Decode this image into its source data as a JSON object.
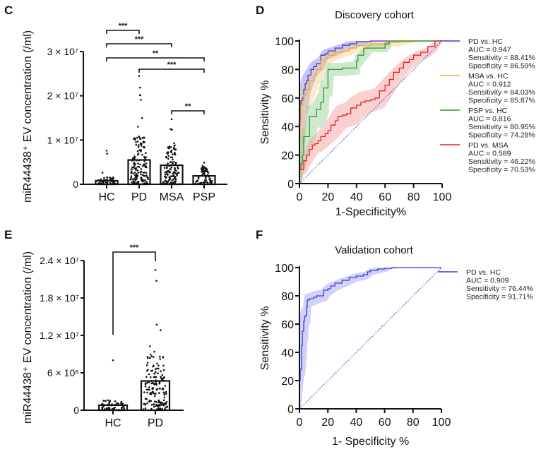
{
  "chart_data": [
    {
      "panel": "C",
      "type": "bar",
      "title": "",
      "xlabel": "",
      "ylabel": "miR44438⁺ EV concentration (/ml)",
      "categories": [
        "HC",
        "PD",
        "MSA",
        "PSP"
      ],
      "values": [
        800000,
        5500000,
        4300000,
        1900000
      ],
      "ylim": [
        0,
        30000000
      ],
      "yticks": [
        {
          "value": 0,
          "label": "0"
        },
        {
          "value": 10000000,
          "label": "1 × 10⁷"
        },
        {
          "value": 20000000,
          "label": "2 × 10⁷"
        },
        {
          "value": 30000000,
          "label": "3 × 10⁷"
        }
      ],
      "points_max": [
        7600000,
        24500000,
        14700000,
        4900000
      ],
      "significance": [
        {
          "from": "HC",
          "to": "PD",
          "label": "***"
        },
        {
          "from": "HC",
          "to": "MSA",
          "label": "***"
        },
        {
          "from": "HC",
          "to": "PSP",
          "label": "**"
        },
        {
          "from": "PD",
          "to": "PSP",
          "label": "***"
        },
        {
          "from": "MSA",
          "to": "PSP",
          "label": "**"
        }
      ]
    },
    {
      "panel": "D",
      "type": "line",
      "title": "Discovery cohort",
      "xlabel": "1-Specificity%",
      "ylabel": "Sensitivity %",
      "xlim": [
        0,
        100
      ],
      "ylim": [
        0,
        100
      ],
      "xticks": [
        "0",
        "20",
        "40",
        "60",
        "80",
        "100"
      ],
      "yticks": [
        "0",
        "20",
        "40",
        "60",
        "80",
        "100"
      ],
      "legend_position": "right",
      "series": [
        {
          "name": "PD vs. HC",
          "color": "#3a3ae0",
          "band": "#7f7ff0",
          "auc": "AUC = 0.947",
          "sens": "Sensitivity = 88.41%",
          "spec": "Specificity = 86.59%",
          "x": [
            0,
            0.5,
            1,
            2,
            3,
            4,
            5,
            6,
            8,
            10,
            12,
            15,
            18,
            20,
            25,
            30,
            35,
            40,
            50,
            60,
            70,
            100
          ],
          "y": [
            0,
            40,
            55,
            58,
            60,
            66,
            70,
            72,
            76,
            80,
            82,
            84,
            90,
            91,
            93,
            95,
            97,
            98,
            99.5,
            100,
            100,
            100
          ]
        },
        {
          "name": "MSA vs. HC",
          "color": "#f2a531",
          "band": "#f7cf8b",
          "auc": "AUC = 0.912",
          "sens": "Sensitivity = 84.03%",
          "spec": "Specificity = 85.87%",
          "x": [
            0,
            0.5,
            1,
            2,
            3,
            5,
            7,
            10,
            12,
            15,
            18,
            20,
            25,
            30,
            35,
            40,
            50,
            60,
            70,
            80,
            100
          ],
          "y": [
            0,
            30,
            45,
            55,
            58,
            62,
            66,
            72,
            76,
            80,
            86,
            88,
            90,
            92,
            93,
            95,
            97,
            98,
            99,
            99.5,
            100
          ]
        },
        {
          "name": "PSP vs. HC",
          "color": "#2f9a2f",
          "band": "#8fce8f",
          "auc": "AUC = 0.816",
          "sens": "Sensitivity = 80.95%",
          "spec": "Specificity = 74.28%",
          "x": [
            0,
            1,
            2,
            3,
            5,
            7,
            9,
            12,
            15,
            17,
            18,
            20,
            22,
            25,
            30,
            40,
            41,
            45,
            50,
            52,
            60,
            63,
            64,
            100
          ],
          "y": [
            0,
            10,
            14,
            20,
            33,
            33,
            47,
            47,
            52,
            57,
            67,
            67,
            80,
            80,
            80,
            81,
            86,
            90,
            95,
            95,
            95,
            98,
            100,
            100
          ]
        },
        {
          "name": "PD vs. MSA",
          "color": "#e82020",
          "band": "#f59a9a",
          "auc": "AUC = 0.589",
          "sens": "Sensitivity = 46.22%",
          "spec": "Specificity = 70.53%",
          "x": [
            0,
            1,
            3,
            5,
            7,
            9,
            11,
            13,
            15,
            18,
            20,
            22,
            25,
            27,
            30,
            33,
            36,
            40,
            43,
            46,
            50,
            53,
            56,
            60,
            63,
            66,
            70,
            73,
            77,
            80,
            85,
            90,
            95,
            100
          ],
          "y": [
            0,
            10,
            10,
            16,
            20,
            24,
            27,
            28,
            30,
            33,
            35,
            37,
            41,
            44,
            47,
            48,
            49,
            53,
            55,
            57,
            58,
            59,
            60,
            65,
            69,
            73,
            78,
            81,
            85,
            87,
            90,
            92,
            96,
            100
          ]
        }
      ],
      "reference_line": {
        "x": [
          0,
          100
        ],
        "y": [
          0,
          100
        ],
        "style": "dashed",
        "color": "#4848c8"
      }
    },
    {
      "panel": "E",
      "type": "bar",
      "title": "",
      "xlabel": "",
      "ylabel": "miR44438⁺ EV concentration (/ml)",
      "categories": [
        "HC",
        "PD"
      ],
      "values": [
        800000,
        4700000
      ],
      "ylim": [
        0,
        24000000
      ],
      "yticks": [
        {
          "value": 0,
          "label": "0"
        },
        {
          "value": 6000000,
          "label": "6 × 10⁶"
        },
        {
          "value": 12000000,
          "label": "1.2 × 10⁷"
        },
        {
          "value": 18000000,
          "label": "1.8 × 10⁷"
        },
        {
          "value": 24000000,
          "label": "2.4 × 10⁷"
        }
      ],
      "points_max": [
        8000000,
        22500000
      ],
      "significance": [
        {
          "from": "HC",
          "to": "PD",
          "label": "***"
        }
      ]
    },
    {
      "panel": "F",
      "type": "line",
      "title": "Validation cohort",
      "xlabel": "1- Specificity %",
      "ylabel": "Sensitivity %",
      "xlim": [
        0,
        100
      ],
      "ylim": [
        0,
        100
      ],
      "xticks": [
        "0",
        "20",
        "40",
        "60",
        "80",
        "100"
      ],
      "yticks": [
        "0",
        "20",
        "40",
        "60",
        "80",
        "100"
      ],
      "legend_position": "right",
      "series": [
        {
          "name": "PD vs. HC",
          "color": "#3a3ae0",
          "band": "#9a9af2",
          "auc": "AUC = 0.909",
          "sens": "Sensitivity = 76.44%",
          "spec": "Specificity = 91.71%",
          "x": [
            0,
            0.5,
            1,
            1.5,
            2,
            2.5,
            3,
            3.5,
            4,
            5,
            5.5,
            6,
            6.5,
            7,
            10,
            12,
            15,
            17,
            20,
            22,
            25,
            30,
            35,
            40,
            45,
            48,
            50,
            55,
            60,
            65,
            70,
            80,
            90,
            100
          ],
          "y": [
            0,
            20,
            28,
            28,
            45,
            55,
            55,
            62,
            65,
            66,
            72,
            77,
            77,
            77,
            78,
            79,
            80,
            80,
            84,
            85,
            87,
            89,
            91,
            93,
            94,
            95,
            97,
            98,
            99,
            99.5,
            100,
            100,
            100,
            100
          ]
        }
      ],
      "reference_line": {
        "x": [
          0,
          100
        ],
        "y": [
          0,
          100
        ],
        "style": "dashed",
        "color": "#4848c8"
      }
    }
  ],
  "panels": {
    "c_label": "C",
    "d_label": "D",
    "e_label": "E",
    "f_label": "F"
  }
}
